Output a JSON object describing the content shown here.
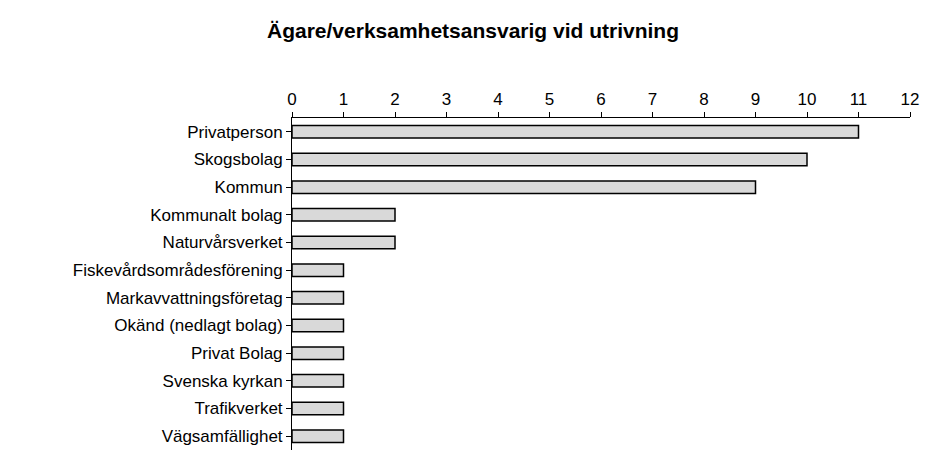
{
  "chart_data": {
    "type": "bar",
    "orientation": "horizontal",
    "title": "Ägare/verksamhetsansvarig vid utrivning",
    "categories": [
      "Privatperson",
      "Skogsbolag",
      "Kommun",
      "Kommunalt bolag",
      "Naturvårsverket",
      "Fiskevårdsområdesförening",
      "Markavvattningsföretag",
      "Okänd (nedlagt bolag)",
      "Privat Bolag",
      "Svenska kyrkan",
      "Trafikverket",
      "Vägsamfällighet"
    ],
    "values": [
      11,
      10,
      9,
      2,
      2,
      1,
      1,
      1,
      1,
      1,
      1,
      1
    ],
    "color": "#d9d9d9",
    "xlim": [
      0,
      12
    ],
    "xticks": [
      0,
      1,
      2,
      3,
      4,
      5,
      6,
      7,
      8,
      9,
      10,
      11,
      12
    ],
    "grid": false
  }
}
